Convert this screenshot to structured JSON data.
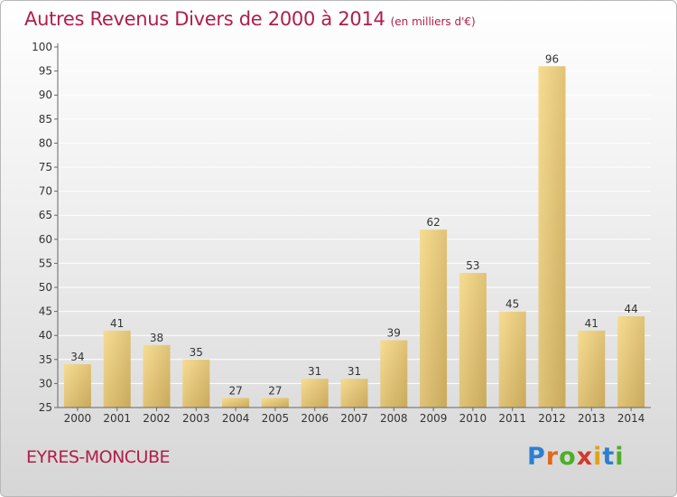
{
  "header": {
    "title": "Autres Revenus Divers de 2000 à 2014",
    "subtitle": "(en milliers d'€)"
  },
  "footer": {
    "commune": "EYRES-MONCUBE",
    "logo": {
      "letters": [
        "P",
        "r",
        "o",
        "x",
        "i",
        "t",
        "i"
      ],
      "colors": [
        "#2c7fd1",
        "#e06a1b",
        "#4caf2a",
        "#d23a2a",
        "#e0a21b",
        "#2c7fd1",
        "#4caf2a"
      ]
    }
  },
  "colors": {
    "bar_light": "#f6dc92",
    "bar_dark": "#c9a95c",
    "axis": "#666666",
    "grid": "#ffffff"
  },
  "chart_data": {
    "type": "bar",
    "title": "Autres Revenus Divers de 2000 à 2014",
    "subtitle": "(en milliers d'€)",
    "categories": [
      "2000",
      "2001",
      "2002",
      "2003",
      "2004",
      "2005",
      "2006",
      "2007",
      "2008",
      "2009",
      "2010",
      "2011",
      "2012",
      "2013",
      "2014"
    ],
    "values": [
      34,
      41,
      38,
      35,
      27,
      27,
      31,
      31,
      39,
      62,
      53,
      45,
      96,
      41,
      44
    ],
    "ylim": [
      25,
      100
    ],
    "yticks": [
      25,
      30,
      35,
      40,
      45,
      50,
      55,
      60,
      65,
      70,
      75,
      80,
      85,
      90,
      95,
      100
    ],
    "grid": true,
    "xlabel": "",
    "ylabel": ""
  }
}
